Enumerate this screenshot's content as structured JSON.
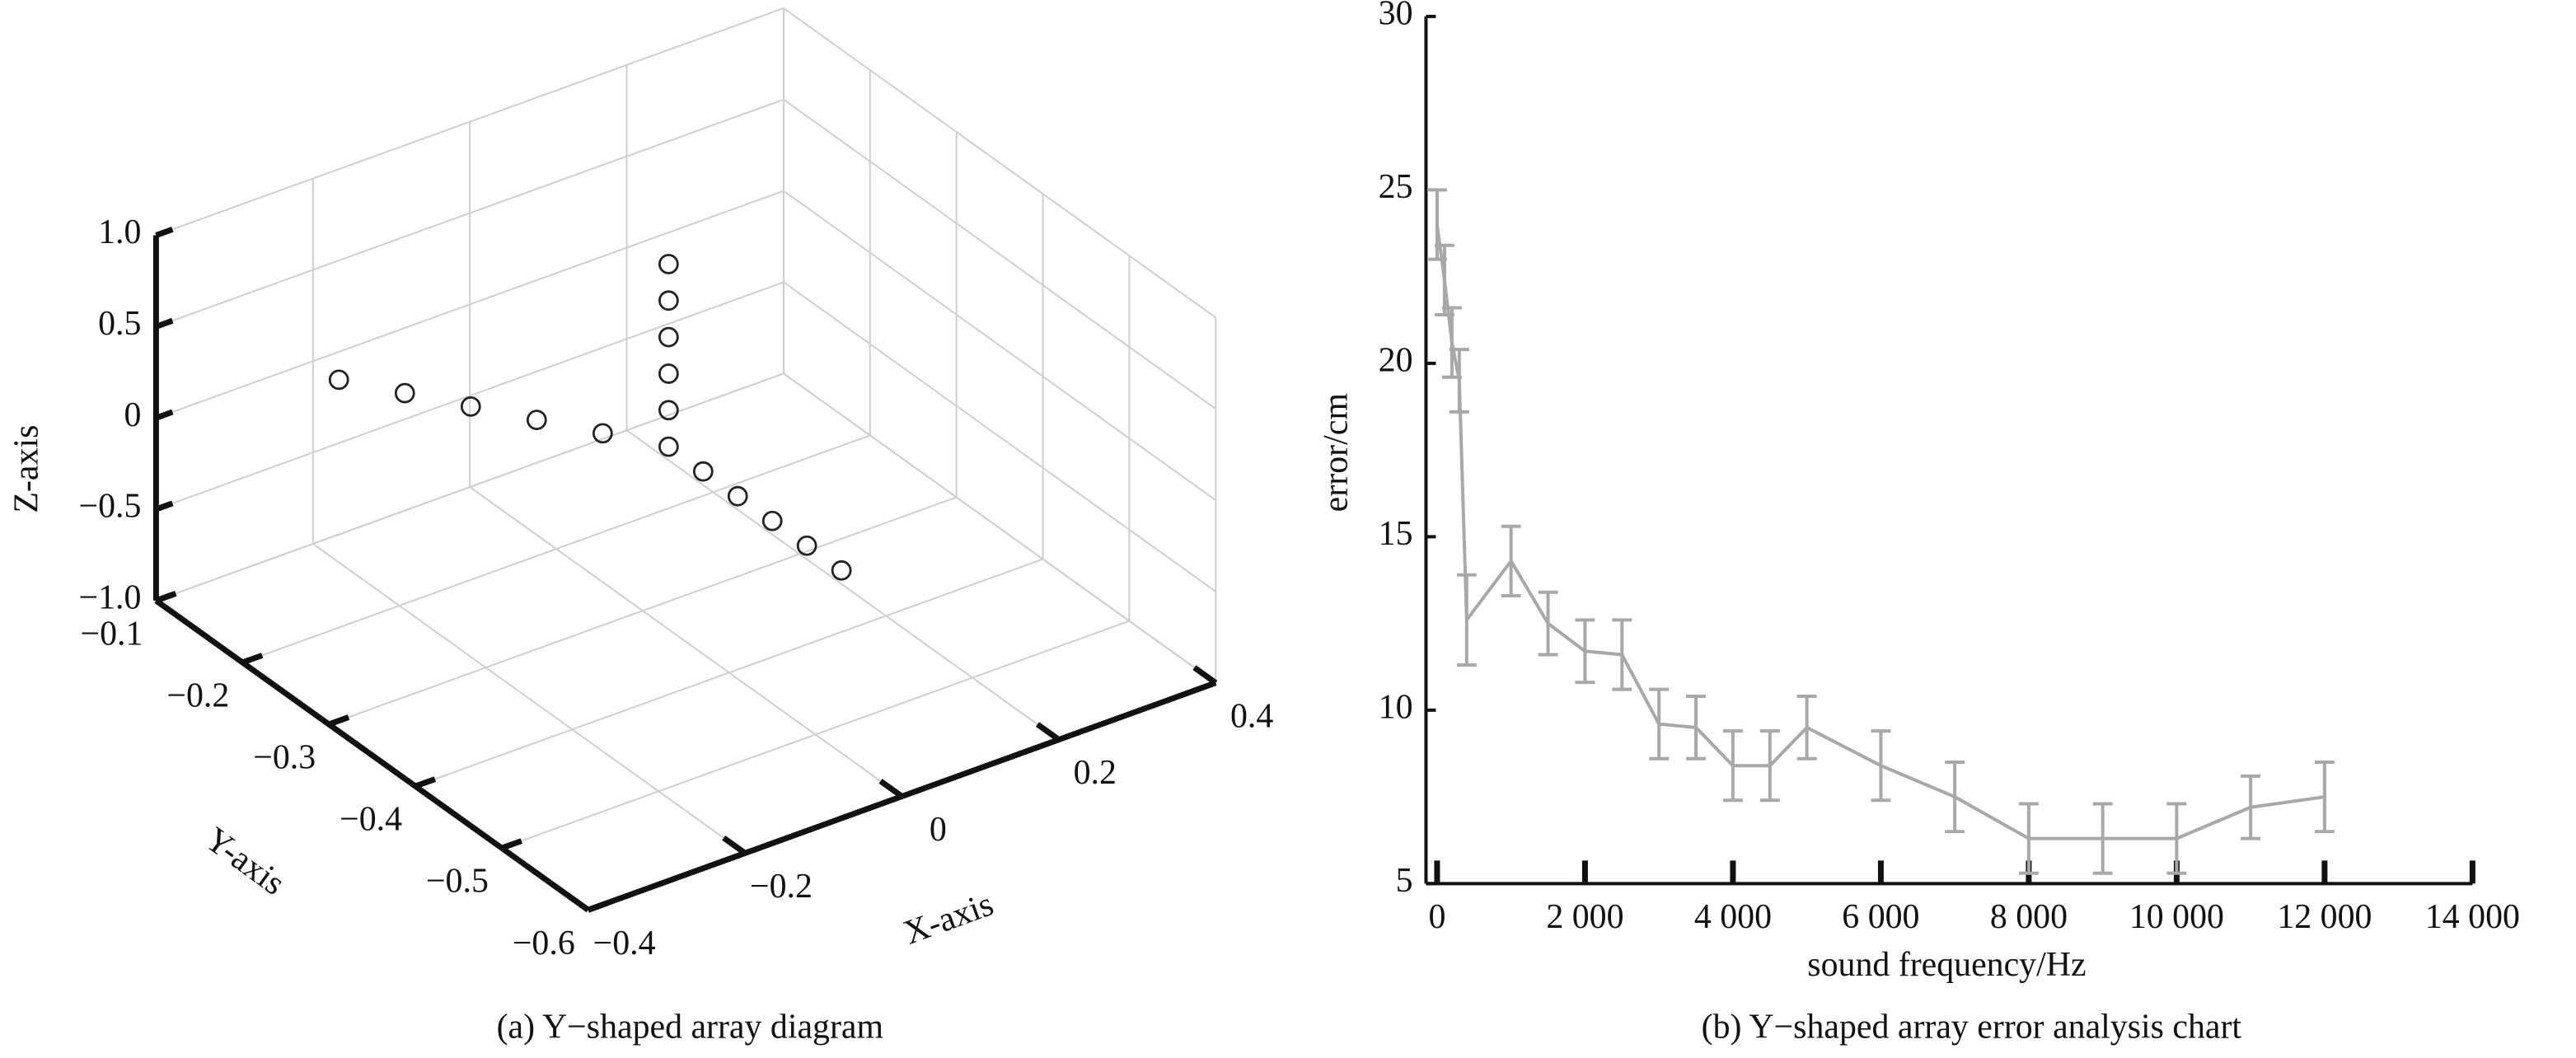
{
  "chart_data": [
    {
      "type": "scatter3d",
      "caption": "(a) Y−shaped array diagram",
      "xlabel": "X-axis",
      "ylabel": "Y-axis",
      "zlabel": "Z-axis",
      "x": [
        0,
        0,
        0,
        0,
        0,
        0,
        -0.04,
        -0.08,
        -0.12,
        -0.16,
        -0.2,
        0,
        0,
        0,
        0,
        0
      ],
      "y": [
        -0.33,
        -0.33,
        -0.33,
        -0.33,
        -0.33,
        -0.33,
        -0.29,
        -0.25,
        -0.21,
        -0.17,
        -0.13,
        -0.37,
        -0.41,
        -0.45,
        -0.49,
        -0.53
      ],
      "z": [
        0,
        0.2,
        0.4,
        0.6,
        0.8,
        1,
        0,
        0,
        0,
        0,
        0,
        0,
        0,
        0,
        0,
        0
      ],
      "color": "#222222",
      "xlim": [
        -0.4,
        0.4
      ],
      "ylim": [
        -0.6,
        -0.1
      ],
      "zlim": [
        -1,
        1
      ],
      "xticks": [
        {
          "value": -0.4,
          "label": "−0.4"
        },
        {
          "value": -0.2,
          "label": "−0.2"
        },
        0,
        0.2,
        0.4
      ],
      "yticks": [
        {
          "value": -0.1,
          "label": "−0.1"
        },
        {
          "value": -0.2,
          "label": "−0.2"
        },
        {
          "value": -0.3,
          "label": "−0.3"
        },
        {
          "value": -0.4,
          "label": "−0.4"
        },
        {
          "value": -0.5,
          "label": "−0.5"
        },
        {
          "value": -0.6,
          "label": "−0.6"
        }
      ],
      "zticks": [
        {
          "value": -1,
          "label": "−1.0"
        },
        {
          "value": -0.5,
          "label": "−0.5"
        },
        0,
        0.5,
        {
          "value": 1,
          "label": "1.0"
        }
      ],
      "grid": true
    },
    {
      "type": "line",
      "caption": "(b) Y−shaped array error analysis chart",
      "xlabel": "sound frequency/Hz",
      "ylabel": "error/cm",
      "x": [
        0,
        100,
        200,
        300,
        400,
        1000,
        1500,
        2000,
        2500,
        3000,
        3500,
        4000,
        4500,
        5000,
        6000,
        7000,
        8000,
        9000,
        10000,
        11000,
        12000
      ],
      "values": [
        24,
        22.4,
        20.6,
        19.5,
        12.6,
        14.3,
        12.5,
        11.7,
        11.6,
        9.6,
        9.5,
        8.4,
        8.4,
        9.5,
        8.4,
        7.5,
        6.3,
        6.3,
        6.3,
        7.2,
        7.5
      ],
      "errors": [
        1,
        1,
        1,
        0.9,
        1.3,
        1,
        0.9,
        0.9,
        1,
        1,
        0.9,
        1,
        1,
        0.9,
        1,
        1,
        1,
        1,
        1,
        0.9,
        1
      ],
      "color": "#a8a8a8",
      "xlim": [
        -150,
        14000
      ],
      "ylim": [
        5,
        30
      ],
      "xticks": [
        0,
        {
          "value": 2000,
          "label": "2 000"
        },
        {
          "value": 4000,
          "label": "4 000"
        },
        {
          "value": 6000,
          "label": "6 000"
        },
        {
          "value": 8000,
          "label": "8 000"
        },
        {
          "value": 10000,
          "label": "10 000"
        },
        {
          "value": 12000,
          "label": "12 000"
        },
        {
          "value": 14000,
          "label": "14 000"
        }
      ],
      "yticks": [
        5,
        10,
        15,
        20,
        25,
        30
      ]
    }
  ]
}
